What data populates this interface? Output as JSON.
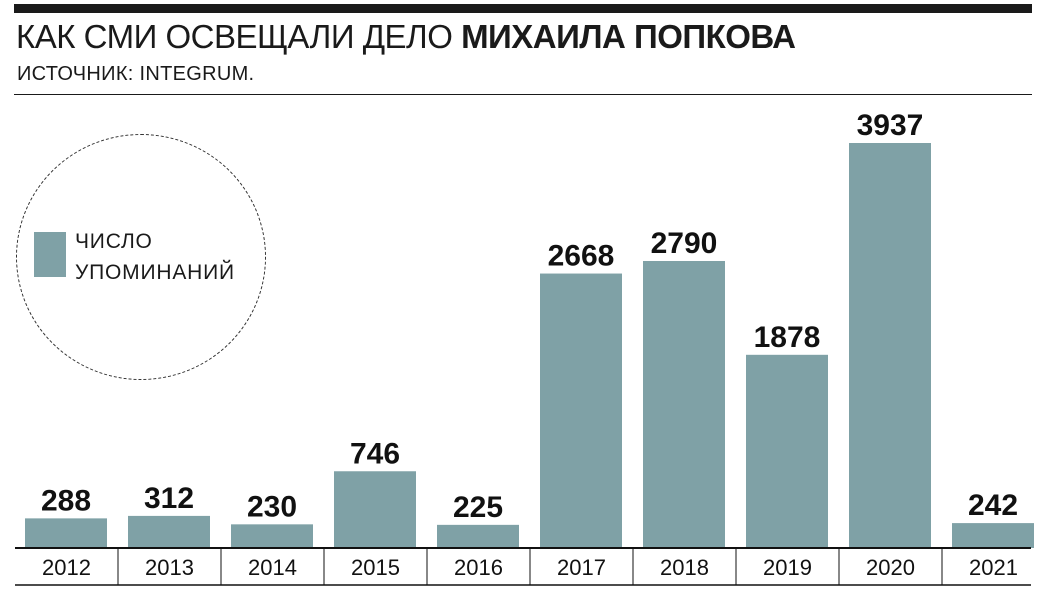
{
  "header": {
    "title_regular": "КАК СМИ ОСВЕЩАЛИ ДЕЛО ",
    "title_bold": "МИХАИЛА ПОПКОВА",
    "subtitle": "ИСТОЧНИК: INTEGRUM."
  },
  "legend": {
    "line1": "ЧИСЛО",
    "line2": "УПОМИНАНИЙ"
  },
  "colors": {
    "bar": "#7fa1a6",
    "text": "#1a1a1a"
  },
  "chart_data": {
    "type": "bar",
    "title": "КАК СМИ ОСВЕЩАЛИ ДЕЛО МИХАИЛА ПОПКОВА",
    "subtitle": "ИСТОЧНИК: INTEGRUM.",
    "categories": [
      "2012",
      "2013",
      "2014",
      "2015",
      "2016",
      "2017",
      "2018",
      "2019",
      "2020",
      "2021"
    ],
    "series": [
      {
        "name": "ЧИСЛО УПОМИНАНИЙ",
        "values": [
          288,
          312,
          230,
          746,
          225,
          2668,
          2790,
          1878,
          3937,
          242
        ]
      }
    ],
    "ylim": [
      0,
      3937
    ],
    "grid": false,
    "legend_position": "left"
  }
}
